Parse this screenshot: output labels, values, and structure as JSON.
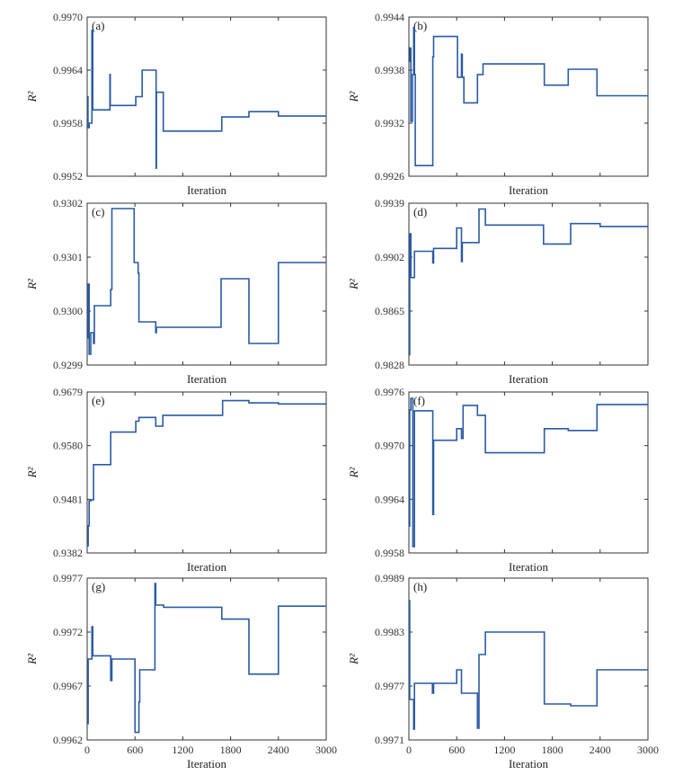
{
  "figure": {
    "xlabel": "Iteration",
    "ylabel": "R²"
  },
  "chart_data": [
    {
      "type": "line",
      "panel_label": "(a)",
      "xlabel": "Iteration",
      "ylabel": "R²",
      "xlim": [
        0,
        3000
      ],
      "ylim": [
        0.9952,
        0.997
      ],
      "y_ticks": [
        "0.9970",
        "0.9964",
        "0.9958",
        "0.9952"
      ],
      "y_tick_values": [
        0.997,
        0.9964,
        0.9958,
        0.9952
      ],
      "x": [
        0,
        10,
        10,
        25,
        25,
        45,
        45,
        60,
        60,
        70,
        70,
        80,
        80,
        285,
        285,
        290,
        290,
        610,
        610,
        650,
        650,
        690,
        690,
        865,
        865,
        870,
        870,
        880,
        880,
        955,
        955,
        1690,
        1690,
        2030,
        2030,
        2400,
        2400,
        3000
      ],
      "series": [
        {
          "values": [
            0.9961,
            0.9961,
            0.99575,
            0.99575,
            0.9958,
            0.9958,
            0.9958,
            0.9958,
            0.99685,
            0.99685,
            0.99595,
            0.99595,
            0.99595,
            0.99595,
            0.99635,
            0.99635,
            0.996,
            0.996,
            0.9961,
            0.9961,
            0.9961,
            0.9961,
            0.9964,
            0.9964,
            0.99529,
            0.99529,
            0.99615,
            0.99615,
            0.99615,
            0.99615,
            0.99571,
            0.99571,
            0.99587,
            0.99587,
            0.99593,
            0.99593,
            0.99588,
            0.99588
          ]
        }
      ]
    },
    {
      "type": "line",
      "panel_label": "(b)",
      "xlabel": "Iteration",
      "ylabel": "R²",
      "xlim": [
        0,
        3000
      ],
      "ylim": [
        0.9926,
        0.9944
      ],
      "y_ticks": [
        "0.9944",
        "0.9938",
        "0.9932",
        "0.9926"
      ],
      "y_tick_values": [
        0.9944,
        0.9938,
        0.9932,
        0.9926
      ],
      "x": [
        0,
        15,
        15,
        25,
        25,
        45,
        45,
        60,
        60,
        70,
        70,
        80,
        80,
        300,
        300,
        310,
        310,
        610,
        610,
        660,
        660,
        670,
        670,
        690,
        690,
        860,
        860,
        930,
        930,
        1700,
        1700,
        2000,
        2000,
        2360,
        2360,
        3000
      ],
      "series": [
        {
          "values": [
            0.9939,
            0.9939,
            0.99405,
            0.99405,
            0.99322,
            0.99322,
            0.99375,
            0.99375,
            0.99428,
            0.99428,
            0.99375,
            0.99375,
            0.99272,
            0.99272,
            0.99395,
            0.99395,
            0.99418,
            0.99418,
            0.99372,
            0.99372,
            0.99398,
            0.99398,
            0.99372,
            0.99372,
            0.99343,
            0.99343,
            0.99375,
            0.99375,
            0.99387,
            0.99387,
            0.99363,
            0.99363,
            0.99381,
            0.99381,
            0.99351,
            0.99351
          ]
        }
      ]
    },
    {
      "type": "line",
      "panel_label": "(c)",
      "xlabel": "Iteration",
      "ylabel": "R²",
      "xlim": [
        0,
        3000
      ],
      "ylim": [
        0.9299,
        0.9302
      ],
      "y_ticks": [
        "0.9302",
        "0.9301",
        "0.9300",
        "0.9299"
      ],
      "y_tick_values": [
        0.9302,
        0.9301,
        0.93,
        0.9299
      ],
      "x": [
        0,
        12,
        12,
        25,
        25,
        45,
        45,
        80,
        80,
        90,
        90,
        295,
        295,
        310,
        310,
        590,
        590,
        640,
        640,
        650,
        650,
        860,
        860,
        870,
        870,
        880,
        880,
        1680,
        1680,
        2030,
        2030,
        2400,
        2400,
        3000
      ],
      "series": [
        {
          "values": [
            0.92995,
            0.92995,
            0.93005,
            0.93005,
            0.92992,
            0.92992,
            0.92996,
            0.92996,
            0.92994,
            0.92994,
            0.93001,
            0.93001,
            0.93004,
            0.93004,
            0.93019,
            0.93019,
            0.93009,
            0.93009,
            0.93007,
            0.93007,
            0.92998,
            0.92998,
            0.92996,
            0.92996,
            0.92997,
            0.92997,
            0.92997,
            0.92997,
            0.93006,
            0.93006,
            0.92994,
            0.92994,
            0.93009,
            0.93009
          ]
        }
      ]
    },
    {
      "type": "line",
      "panel_label": "(d)",
      "xlabel": "Iteration",
      "ylabel": "R²",
      "xlim": [
        0,
        3000
      ],
      "ylim": [
        0.9828,
        0.9939
      ],
      "y_ticks": [
        "0.9939",
        "0.9902",
        "0.9865",
        "0.9828"
      ],
      "y_tick_values": [
        0.9939,
        0.9902,
        0.9865,
        0.9828
      ],
      "x": [
        0,
        10,
        10,
        25,
        25,
        70,
        70,
        300,
        300,
        310,
        310,
        600,
        600,
        660,
        660,
        670,
        670,
        880,
        880,
        960,
        960,
        1690,
        1690,
        2030,
        2030,
        2400,
        2400,
        3000
      ],
      "series": [
        {
          "values": [
            0.9835,
            0.9835,
            0.9918,
            0.9918,
            0.9888,
            0.9888,
            0.9906,
            0.9906,
            0.9898,
            0.9898,
            0.9908,
            0.9908,
            0.9922,
            0.9922,
            0.9899,
            0.9899,
            0.9912,
            0.9912,
            0.9935,
            0.9935,
            0.9924,
            0.9924,
            0.9911,
            0.9911,
            0.9925,
            0.9925,
            0.9923,
            0.9923
          ]
        }
      ]
    },
    {
      "type": "line",
      "panel_label": "(e)",
      "xlabel": "Iteration",
      "ylabel": "R²",
      "xlim": [
        0,
        3000
      ],
      "ylim": [
        0.9382,
        0.9679
      ],
      "y_ticks": [
        "0.9679",
        "0.9580",
        "0.9481",
        "0.9382"
      ],
      "y_tick_values": [
        0.9679,
        0.958,
        0.9481,
        0.9382
      ],
      "x": [
        0,
        12,
        12,
        25,
        25,
        45,
        45,
        80,
        80,
        90,
        90,
        295,
        295,
        310,
        310,
        610,
        610,
        650,
        650,
        680,
        680,
        860,
        860,
        870,
        870,
        950,
        950,
        1700,
        1700,
        2030,
        2030,
        2400,
        2400,
        3000
      ],
      "series": [
        {
          "values": [
            0.9395,
            0.9395,
            0.9432,
            0.9432,
            0.9478,
            0.9478,
            0.948,
            0.948,
            0.9545,
            0.9545,
            0.9545,
            0.9545,
            0.9605,
            0.9605,
            0.9605,
            0.9605,
            0.9625,
            0.9625,
            0.9632,
            0.9632,
            0.9632,
            0.9632,
            0.9616,
            0.9616,
            0.9616,
            0.9616,
            0.9636,
            0.9636,
            0.9663,
            0.9663,
            0.9659,
            0.9659,
            0.9657,
            0.9657
          ]
        }
      ]
    },
    {
      "type": "line",
      "panel_label": "(f)",
      "xlabel": "Iteration",
      "ylabel": "R²",
      "xlim": [
        0,
        3000
      ],
      "ylim": [
        0.9958,
        0.9976
      ],
      "y_ticks": [
        "0.9976",
        "0.9970",
        "0.9964",
        "0.9958"
      ],
      "y_tick_values": [
        0.9976,
        0.997,
        0.9964,
        0.9958
      ],
      "x": [
        0,
        10,
        10,
        25,
        25,
        50,
        50,
        70,
        70,
        80,
        80,
        300,
        300,
        310,
        310,
        600,
        600,
        660,
        660,
        680,
        680,
        860,
        860,
        960,
        960,
        1700,
        1700,
        2000,
        2000,
        2360,
        2360,
        3000
      ],
      "series": [
        {
          "values": [
            0.9961,
            0.9961,
            0.9974,
            0.9974,
            0.99753,
            0.99753,
            0.99587,
            0.99587,
            0.99739,
            0.99739,
            0.99739,
            0.99739,
            0.99623,
            0.99623,
            0.99706,
            0.99706,
            0.99719,
            0.99719,
            0.99708,
            0.99708,
            0.99745,
            0.99745,
            0.99734,
            0.99734,
            0.99692,
            0.99692,
            0.99719,
            0.99719,
            0.99717,
            0.99717,
            0.99746,
            0.99746
          ]
        }
      ]
    },
    {
      "type": "line",
      "panel_label": "(g)",
      "xlabel": "Iteration",
      "ylabel": "R²",
      "xlim": [
        0,
        3000
      ],
      "ylim": [
        0.9962,
        0.9977
      ],
      "y_ticks": [
        "0.9977",
        "0.9972",
        "0.9967",
        "0.9962"
      ],
      "y_tick_values": [
        0.9977,
        0.9972,
        0.9967,
        0.9962
      ],
      "x": [
        0,
        12,
        12,
        25,
        25,
        60,
        60,
        70,
        70,
        80,
        80,
        295,
        295,
        310,
        310,
        600,
        600,
        650,
        650,
        660,
        660,
        850,
        850,
        860,
        860,
        960,
        960,
        1690,
        1690,
        2030,
        2030,
        2400,
        2400,
        3000
      ],
      "series": [
        {
          "values": [
            0.99635,
            0.99635,
            0.99695,
            0.99695,
            0.99695,
            0.99695,
            0.99725,
            0.99725,
            0.99698,
            0.99698,
            0.99698,
            0.99698,
            0.99675,
            0.99675,
            0.99695,
            0.99695,
            0.99627,
            0.99627,
            0.99655,
            0.99655,
            0.99685,
            0.99685,
            0.99765,
            0.99765,
            0.99745,
            0.99745,
            0.99743,
            0.99743,
            0.99732,
            0.99732,
            0.99681,
            0.99681,
            0.99744,
            0.99744
          ]
        }
      ]
    },
    {
      "type": "line",
      "panel_label": "(h)",
      "xlabel": "Iteration",
      "ylabel": "R²",
      "xlim": [
        0,
        3000
      ],
      "ylim": [
        0.9971,
        0.9989
      ],
      "y_ticks": [
        "0.9989",
        "0.9983",
        "0.9977",
        "0.9971"
      ],
      "y_tick_values": [
        0.9989,
        0.9983,
        0.9977,
        0.9971
      ],
      "x": [
        0,
        10,
        10,
        45,
        45,
        60,
        60,
        70,
        70,
        295,
        295,
        310,
        310,
        600,
        600,
        660,
        660,
        670,
        670,
        860,
        860,
        880,
        880,
        960,
        960,
        1700,
        1700,
        2030,
        2030,
        2360,
        2360,
        3000
      ],
      "series": [
        {
          "values": [
            0.99865,
            0.99865,
            0.99755,
            0.99755,
            0.99755,
            0.99755,
            0.99722,
            0.99722,
            0.99773,
            0.99773,
            0.99762,
            0.99762,
            0.99773,
            0.99773,
            0.99788,
            0.99788,
            0.99762,
            0.99762,
            0.99762,
            0.99762,
            0.99723,
            0.99723,
            0.99805,
            0.99805,
            0.9983,
            0.9983,
            0.9975,
            0.9975,
            0.99748,
            0.99748,
            0.99788,
            0.99788
          ]
        }
      ]
    }
  ],
  "x_ticks": [
    "0",
    "600",
    "1200",
    "1800",
    "2400",
    "3000"
  ],
  "x_tick_values": [
    0,
    600,
    1200,
    1800,
    2400,
    3000
  ],
  "style": {
    "line_color": "#2a5aa6",
    "axis_color": "#333333"
  }
}
